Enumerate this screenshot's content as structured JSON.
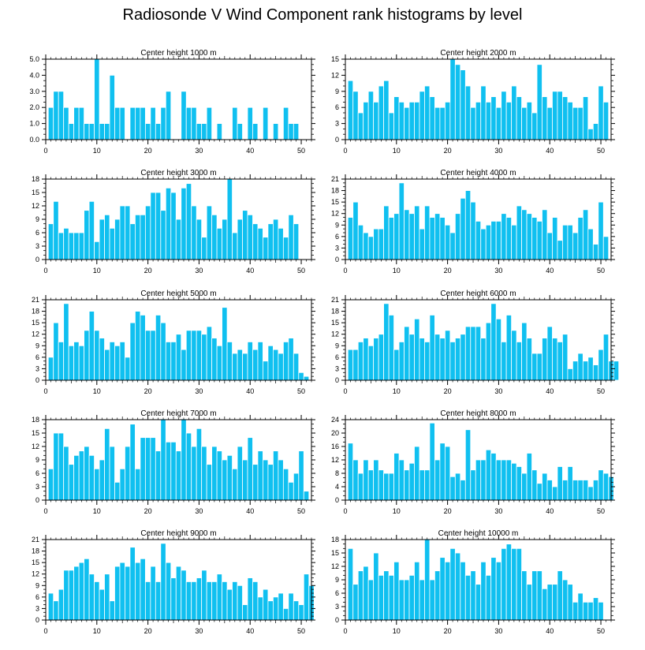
{
  "title": "Radiosonde V Wind Component rank histograms by level",
  "colors": {
    "bar": "#10c0f0",
    "bar_edge": "#ffffff",
    "axis": "#000000"
  },
  "chart_data": [
    {
      "type": "bar",
      "title": "Center height 1000 m",
      "ylim": [
        0,
        5
      ],
      "yticks": [
        0,
        1,
        2,
        3,
        4,
        5
      ],
      "ytick_labels": [
        "0.0",
        "1.0",
        "2.0",
        "3.0",
        "4.0",
        "5.0"
      ],
      "xlim": [
        0,
        52
      ],
      "xticks": [
        0,
        10,
        20,
        30,
        40,
        50
      ],
      "values": [
        2,
        3,
        3,
        2,
        1,
        2,
        2,
        1,
        1,
        5,
        1,
        1,
        4,
        2,
        2,
        0,
        2,
        2,
        2,
        1,
        2,
        1,
        2,
        3,
        0,
        0,
        3,
        2,
        2,
        1,
        1,
        2,
        0,
        1,
        0,
        0,
        2,
        1,
        0,
        2,
        1,
        0,
        2,
        0,
        1,
        0,
        2,
        1,
        1
      ]
    },
    {
      "type": "bar",
      "title": "Center height 2000 m",
      "ylim": [
        0,
        15
      ],
      "yticks": [
        0,
        3,
        6,
        9,
        12,
        15
      ],
      "ytick_labels": [
        "0",
        "3",
        "6",
        "9",
        "12",
        "15"
      ],
      "xlim": [
        0,
        52
      ],
      "xticks": [
        0,
        10,
        20,
        30,
        40,
        50
      ],
      "values": [
        11,
        9,
        5,
        7,
        9,
        7,
        10,
        11,
        5,
        8,
        7,
        6,
        7,
        7,
        9,
        10,
        8,
        6,
        6,
        7,
        15,
        14,
        13,
        10,
        6,
        7,
        10,
        7,
        8,
        6,
        9,
        7,
        10,
        8,
        6,
        7,
        5,
        14,
        8,
        6,
        9,
        9,
        8,
        7,
        6,
        6,
        8,
        2,
        3,
        10,
        7
      ]
    },
    {
      "type": "bar",
      "title": "Center height 3000 m",
      "ylim": [
        0,
        18
      ],
      "yticks": [
        0,
        3,
        6,
        9,
        12,
        15,
        18
      ],
      "ytick_labels": [
        "0",
        "3",
        "6",
        "9",
        "12",
        "15",
        "18"
      ],
      "xlim": [
        0,
        52
      ],
      "xticks": [
        0,
        10,
        20,
        30,
        40,
        50
      ],
      "values": [
        8,
        13,
        6,
        7,
        6,
        6,
        6,
        11,
        13,
        4,
        9,
        10,
        7,
        9,
        12,
        12,
        8,
        10,
        10,
        12,
        15,
        15,
        11,
        16,
        15,
        9,
        16,
        17,
        12,
        9,
        5,
        12,
        10,
        7,
        9,
        18,
        6,
        9,
        11,
        10,
        8,
        7,
        5,
        8,
        9,
        7,
        5,
        10,
        8
      ]
    },
    {
      "type": "bar",
      "title": "Center height 4000 m",
      "ylim": [
        0,
        21
      ],
      "yticks": [
        0,
        3,
        6,
        9,
        12,
        15,
        18,
        21
      ],
      "ytick_labels": [
        "0",
        "3",
        "6",
        "9",
        "12",
        "15",
        "18",
        "21"
      ],
      "xlim": [
        0,
        52
      ],
      "xticks": [
        0,
        10,
        20,
        30,
        40,
        50
      ],
      "values": [
        11,
        15,
        9,
        7,
        6,
        8,
        8,
        14,
        11,
        12,
        20,
        13,
        12,
        14,
        8,
        14,
        11,
        12,
        11,
        9,
        7,
        12,
        16,
        18,
        15,
        10,
        8,
        9,
        10,
        10,
        12,
        11,
        9,
        14,
        13,
        12,
        11,
        10,
        13,
        7,
        11,
        5,
        9,
        9,
        7,
        11,
        13,
        8,
        4,
        15,
        6
      ]
    },
    {
      "type": "bar",
      "title": "Center height 5000 m",
      "ylim": [
        0,
        21
      ],
      "yticks": [
        0,
        3,
        6,
        9,
        12,
        15,
        18,
        21
      ],
      "ytick_labels": [
        "0",
        "3",
        "6",
        "9",
        "12",
        "15",
        "18",
        "21"
      ],
      "xlim": [
        0,
        52
      ],
      "xticks": [
        0,
        10,
        20,
        30,
        40,
        50
      ],
      "values": [
        6,
        15,
        10,
        20,
        9,
        10,
        9,
        13,
        18,
        13,
        11,
        8,
        10,
        9,
        10,
        6,
        15,
        18,
        17,
        13,
        13,
        17,
        15,
        10,
        10,
        12,
        8,
        13,
        13,
        13,
        12,
        14,
        11,
        9,
        19,
        10,
        7,
        8,
        7,
        10,
        8,
        10,
        5,
        9,
        8,
        7,
        10,
        11,
        7,
        2,
        1
      ]
    },
    {
      "type": "bar",
      "title": "Center height 6000 m",
      "ylim": [
        0,
        21
      ],
      "yticks": [
        0,
        3,
        6,
        9,
        12,
        15,
        18,
        21
      ],
      "ytick_labels": [
        "0",
        "3",
        "6",
        "9",
        "12",
        "15",
        "18",
        "21"
      ],
      "xlim": [
        0,
        52
      ],
      "xticks": [
        0,
        10,
        20,
        30,
        40,
        50
      ],
      "values": [
        8,
        8,
        10,
        11,
        9,
        11,
        12,
        20,
        17,
        8,
        10,
        14,
        12,
        16,
        11,
        10,
        17,
        12,
        11,
        13,
        10,
        11,
        12,
        14,
        14,
        14,
        11,
        15,
        20,
        16,
        10,
        17,
        13,
        10,
        15,
        11,
        7,
        7,
        11,
        14,
        11,
        10,
        12,
        3,
        5,
        7,
        5,
        6,
        4,
        8,
        12,
        5,
        5
      ]
    },
    {
      "type": "bar",
      "title": "Center height 7000 m",
      "ylim": [
        0,
        18
      ],
      "yticks": [
        0,
        3,
        6,
        9,
        12,
        15,
        18
      ],
      "ytick_labels": [
        "0",
        "3",
        "6",
        "9",
        "12",
        "15",
        "18"
      ],
      "xlim": [
        0,
        52
      ],
      "xticks": [
        0,
        10,
        20,
        30,
        40,
        50
      ],
      "values": [
        7,
        15,
        15,
        12,
        8,
        10,
        11,
        12,
        10,
        7,
        9,
        16,
        12,
        4,
        7,
        12,
        17,
        7,
        14,
        14,
        14,
        11,
        18,
        13,
        13,
        11,
        18,
        15,
        12,
        16,
        12,
        8,
        12,
        11,
        9,
        10,
        7,
        12,
        9,
        14,
        8,
        11,
        9,
        8,
        11,
        9,
        7,
        4,
        6,
        11,
        2
      ]
    },
    {
      "type": "bar",
      "title": "Center height 8000 m",
      "ylim": [
        0,
        24
      ],
      "yticks": [
        0,
        4,
        8,
        12,
        16,
        20,
        24
      ],
      "ytick_labels": [
        "0",
        "4",
        "8",
        "12",
        "16",
        "20",
        "24"
      ],
      "xlim": [
        0,
        52
      ],
      "xticks": [
        0,
        10,
        20,
        30,
        40,
        50
      ],
      "values": [
        17,
        12,
        8,
        12,
        9,
        12,
        9,
        8,
        8,
        14,
        12,
        9,
        11,
        16,
        9,
        9,
        23,
        12,
        17,
        16,
        7,
        8,
        6,
        21,
        9,
        12,
        12,
        15,
        14,
        12,
        12,
        12,
        11,
        10,
        8,
        14,
        9,
        5,
        8,
        6,
        4,
        10,
        6,
        10,
        6,
        6,
        6,
        4,
        6,
        9,
        8,
        7
      ]
    },
    {
      "type": "bar",
      "title": "Center height 9000 m",
      "ylim": [
        0,
        21
      ],
      "yticks": [
        0,
        3,
        6,
        9,
        12,
        15,
        18,
        21
      ],
      "ytick_labels": [
        "0",
        "3",
        "6",
        "9",
        "12",
        "15",
        "18",
        "21"
      ],
      "xlim": [
        0,
        52
      ],
      "xticks": [
        0,
        10,
        20,
        30,
        40,
        50
      ],
      "values": [
        7,
        5,
        8,
        13,
        13,
        14,
        15,
        16,
        12,
        10,
        8,
        12,
        5,
        14,
        15,
        14,
        19,
        15,
        16,
        10,
        14,
        10,
        20,
        15,
        11,
        14,
        13,
        10,
        10,
        11,
        13,
        10,
        10,
        12,
        10,
        8,
        10,
        9,
        4,
        11,
        10,
        6,
        8,
        5,
        6,
        7,
        3,
        7,
        5,
        4,
        12,
        9
      ]
    },
    {
      "type": "bar",
      "title": "Center height 10000 m",
      "ylim": [
        0,
        18
      ],
      "yticks": [
        0,
        3,
        6,
        9,
        12,
        15,
        18
      ],
      "ytick_labels": [
        "0",
        "3",
        "6",
        "9",
        "12",
        "15",
        "18"
      ],
      "xlim": [
        0,
        52
      ],
      "xticks": [
        0,
        10,
        20,
        30,
        40,
        50
      ],
      "values": [
        16,
        8,
        11,
        12,
        9,
        15,
        10,
        11,
        10,
        13,
        9,
        9,
        10,
        13,
        9,
        18,
        9,
        11,
        14,
        13,
        16,
        15,
        13,
        10,
        11,
        8,
        13,
        10,
        14,
        13,
        16,
        17,
        16,
        16,
        11,
        8,
        11,
        11,
        7,
        8,
        8,
        11,
        9,
        8,
        4,
        6,
        4,
        4,
        5,
        4
      ]
    }
  ]
}
